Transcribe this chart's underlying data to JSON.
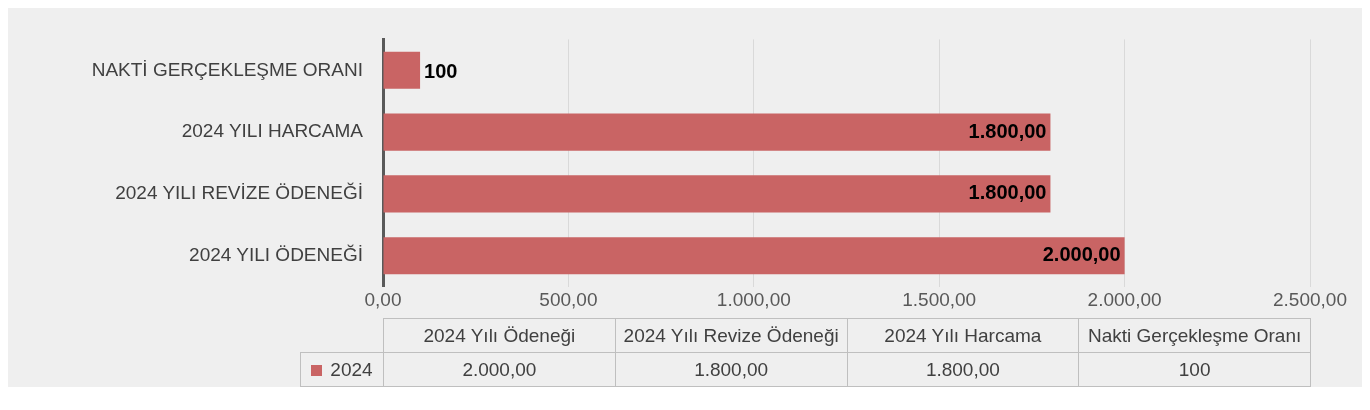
{
  "chart_data": {
    "type": "bar",
    "orientation": "horizontal",
    "categories": [
      "NAKTİ GERÇEKLEŞME ORANI",
      "2024 YILI HARCAMA",
      "2024 YILI REVİZE ÖDENEĞİ",
      "2024 YILI ÖDENEĞİ"
    ],
    "series": [
      {
        "name": "2024",
        "color": "#c96464",
        "values": [
          100,
          1800,
          1800,
          2000
        ],
        "value_labels": [
          "100",
          "1.800,00",
          "1.800,00",
          "2.000,00"
        ]
      }
    ],
    "xlim": [
      0,
      2500
    ],
    "xticks": [
      {
        "value": 0,
        "label": "0,00"
      },
      {
        "value": 500,
        "label": "500,00"
      },
      {
        "value": 1000,
        "label": "1.000,00"
      },
      {
        "value": 1500,
        "label": "1.500,00"
      },
      {
        "value": 2000,
        "label": "2.000,00"
      },
      {
        "value": 2500,
        "label": "2.500,00"
      }
    ],
    "grid": "x",
    "legend": "bottom",
    "annotations": [
      "2024 Yılı Ödeneği",
      "2024 Yılı Revize Ödeneği",
      "2024 Yılı Harcama",
      "Nakti Gerçekleşme Oranı"
    ]
  }
}
